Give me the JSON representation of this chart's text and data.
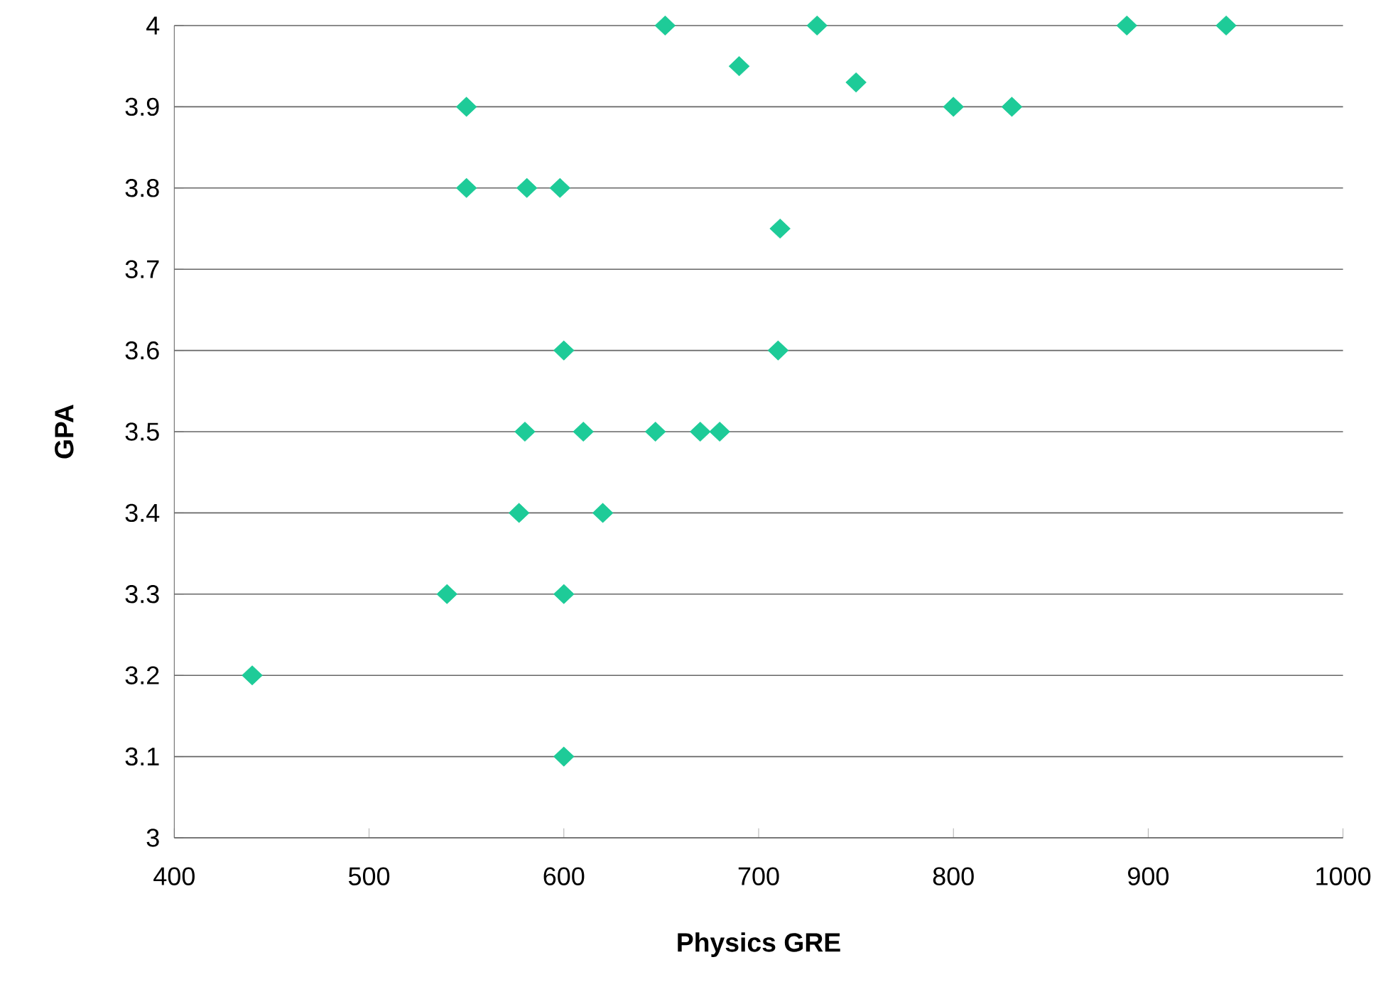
{
  "chart_data": {
    "type": "scatter",
    "xlabel": "Physics GRE",
    "ylabel": "GPA",
    "x": [
      652,
      730,
      889,
      940,
      690,
      750,
      550,
      800,
      830,
      550,
      581,
      598,
      711,
      600,
      710,
      580,
      610,
      647,
      670,
      680,
      577,
      620,
      540,
      600,
      440,
      600
    ],
    "values": [
      4,
      4,
      4,
      4,
      3.95,
      3.93,
      3.9,
      3.9,
      3.9,
      3.8,
      3.8,
      3.8,
      3.75,
      3.6,
      3.6,
      3.5,
      3.5,
      3.5,
      3.5,
      3.5,
      3.4,
      3.4,
      3.3,
      3.3,
      3.2,
      3.1
    ],
    "color": "#1ecb98",
    "marker": "diamond",
    "xlim": [
      400,
      1000
    ],
    "xticks": [
      400,
      500,
      600,
      700,
      800,
      900,
      1000
    ],
    "ylim": [
      3,
      4
    ],
    "yticks": [
      3,
      3.1,
      3.2,
      3.3,
      3.4,
      3.5,
      3.6,
      3.7,
      3.8,
      3.9,
      4
    ],
    "grid": "y"
  }
}
